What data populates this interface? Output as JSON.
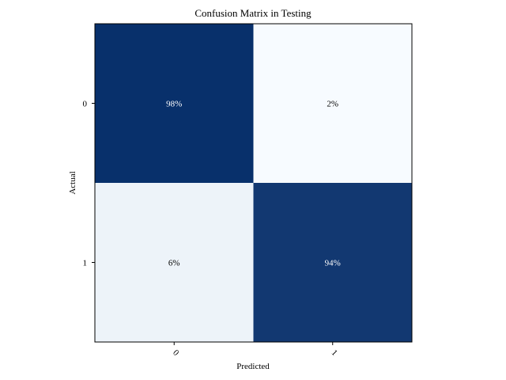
{
  "chart_data": {
    "type": "heatmap",
    "title": "Confusion Matrix in Testing",
    "xlabel": "Predicted",
    "ylabel": "Actual",
    "x_categories": [
      "0",
      "1"
    ],
    "y_categories": [
      "0",
      "1"
    ],
    "values": [
      [
        98,
        2
      ],
      [
        6,
        94
      ]
    ],
    "cell_labels": [
      [
        "98%",
        "2%"
      ],
      [
        "6%",
        "94%"
      ]
    ],
    "colormap": "Blues",
    "colors": {
      "dark": "#08306b",
      "light": "#f7fbff",
      "text_on_dark": "#ffffff",
      "text_on_light": "#000000"
    }
  }
}
